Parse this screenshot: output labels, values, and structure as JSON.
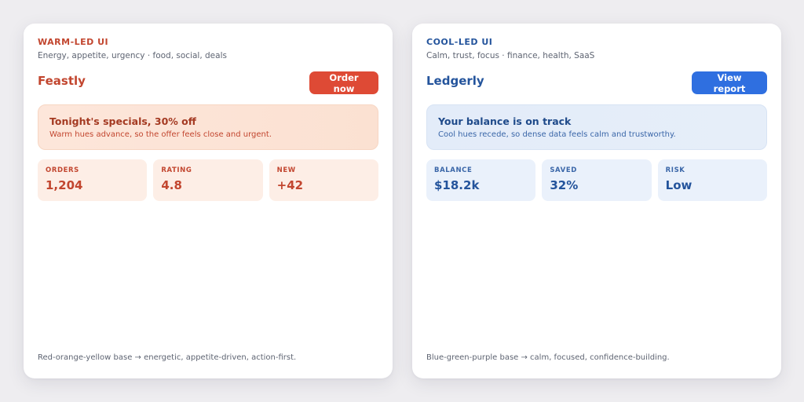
{
  "colors": {
    "warm_accent": "#de4a35",
    "warm_text": "#c2462f",
    "cool_accent": "#2f6fe0",
    "cool_text": "#24549c"
  },
  "warm": {
    "eyebrow": "WARM-LED UI",
    "subtitle": "Energy, appetite, urgency · food, social, deals",
    "brand": "Feastly",
    "button_label": "Order now",
    "banner": {
      "title": "Tonight's specials, 30% off",
      "text": "Warm hues advance, so the offer feels close and urgent."
    },
    "stats": [
      {
        "label": "ORDERS",
        "value": "1,204"
      },
      {
        "label": "RATING",
        "value": "4.8"
      },
      {
        "label": "NEW",
        "value": "+42"
      }
    ],
    "footer": "Red-orange-yellow base → energetic, appetite-driven, action-first."
  },
  "cool": {
    "eyebrow": "COOL-LED UI",
    "subtitle": "Calm, trust, focus · finance, health, SaaS",
    "brand": "Ledgerly",
    "button_label": "View report",
    "banner": {
      "title": "Your balance is on track",
      "text": "Cool hues recede, so dense data feels calm and trustworthy."
    },
    "stats": [
      {
        "label": "BALANCE",
        "value": "$18.2k"
      },
      {
        "label": "SAVED",
        "value": "32%"
      },
      {
        "label": "RISK",
        "value": "Low"
      }
    ],
    "footer": "Blue-green-purple base → calm, focused, confidence-building."
  }
}
